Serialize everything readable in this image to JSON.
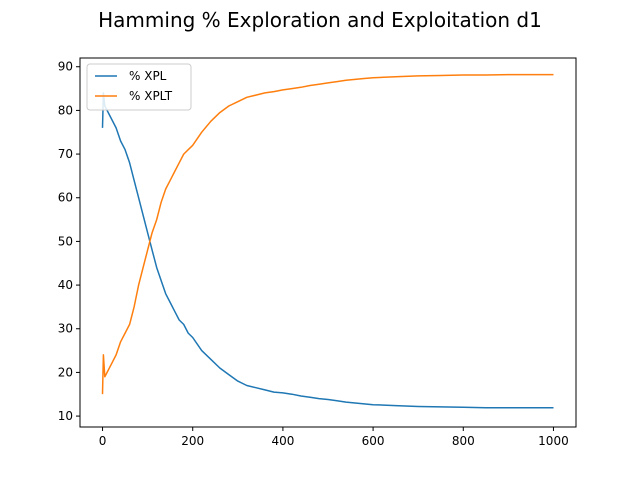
{
  "chart_data": {
    "type": "line",
    "title": "Hamming % Exploration and Exploitation d1",
    "xlabel": "",
    "ylabel": "",
    "xlim": [
      -50,
      1050
    ],
    "ylim": [
      7.5,
      92
    ],
    "x_ticks": [
      0,
      200,
      400,
      600,
      800,
      1000
    ],
    "y_ticks": [
      10,
      20,
      30,
      40,
      50,
      60,
      70,
      80,
      90
    ],
    "grid": false,
    "legend_position": "upper left",
    "series": [
      {
        "name": "% XPL",
        "color": "#1f77b4",
        "x": [
          0,
          2,
          5,
          10,
          20,
          30,
          40,
          50,
          60,
          70,
          80,
          90,
          100,
          110,
          120,
          130,
          140,
          150,
          160,
          170,
          180,
          190,
          200,
          220,
          240,
          260,
          280,
          300,
          320,
          340,
          360,
          380,
          400,
          420,
          440,
          460,
          480,
          500,
          520,
          540,
          560,
          580,
          600,
          650,
          700,
          750,
          800,
          850,
          900,
          950,
          1000
        ],
        "y": [
          76,
          84,
          81,
          80,
          78,
          76,
          73,
          71,
          68,
          64,
          60,
          56,
          52,
          48,
          44,
          41,
          38,
          36,
          34,
          32,
          31,
          29,
          28,
          25,
          23,
          21,
          19.5,
          18,
          17,
          16.5,
          16,
          15.5,
          15.3,
          15,
          14.6,
          14.3,
          14,
          13.8,
          13.5,
          13.2,
          13,
          12.8,
          12.6,
          12.4,
          12.2,
          12.1,
          12,
          11.9,
          11.9,
          11.9,
          11.9
        ]
      },
      {
        "name": "% XPLT",
        "color": "#ff7f0e",
        "x": [
          0,
          2,
          5,
          10,
          20,
          30,
          40,
          50,
          60,
          70,
          80,
          90,
          100,
          110,
          120,
          130,
          140,
          150,
          160,
          170,
          180,
          190,
          200,
          220,
          240,
          260,
          280,
          300,
          320,
          340,
          360,
          380,
          400,
          420,
          440,
          460,
          480,
          500,
          520,
          540,
          560,
          580,
          600,
          650,
          700,
          750,
          800,
          850,
          900,
          950,
          1000
        ],
        "y": [
          15,
          24,
          19,
          20,
          22,
          24,
          27,
          29,
          31,
          35,
          40,
          44,
          48,
          52,
          55,
          59,
          62,
          64,
          66,
          68,
          70,
          71,
          72,
          75,
          77.5,
          79.5,
          81,
          82,
          83,
          83.5,
          84,
          84.3,
          84.7,
          85,
          85.3,
          85.7,
          86,
          86.3,
          86.6,
          86.9,
          87.1,
          87.3,
          87.5,
          87.7,
          87.9,
          88,
          88.1,
          88.1,
          88.2,
          88.2,
          88.2
        ]
      }
    ]
  }
}
